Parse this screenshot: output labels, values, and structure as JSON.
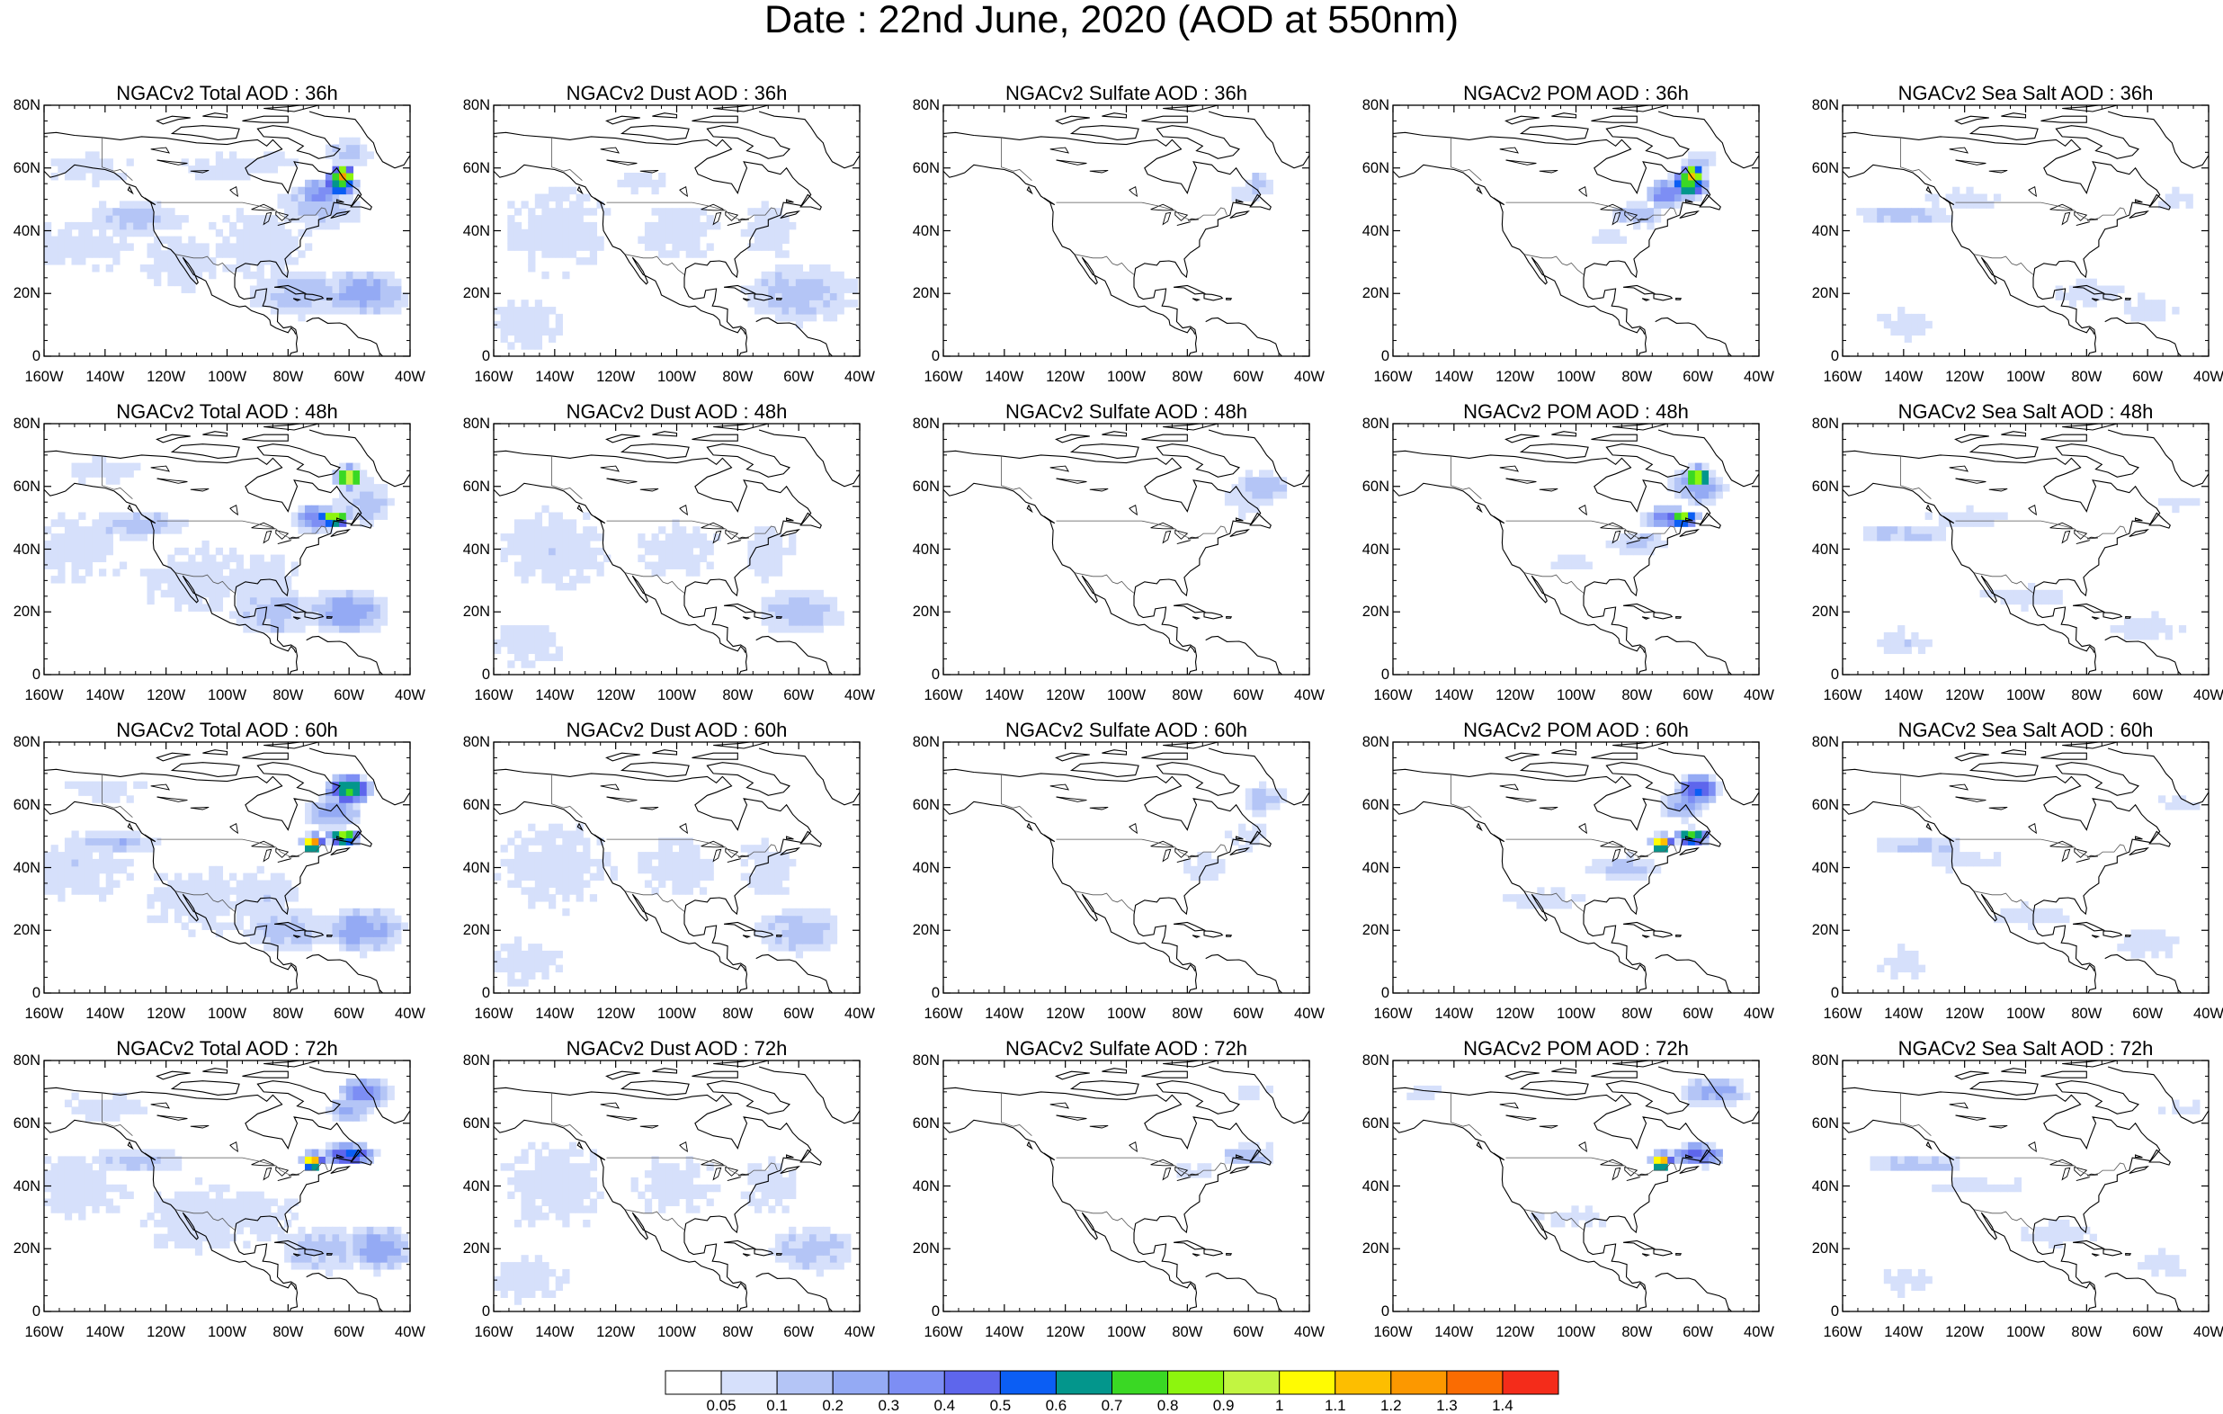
{
  "title": "Date : 22nd June, 2020 (AOD at 550nm)",
  "panels": [
    [
      "NGACv2 Total AOD : 36h",
      "NGACv2 Dust AOD : 36h",
      "NGACv2 Sulfate AOD : 36h",
      "NGACv2 POM AOD : 36h",
      "NGACv2 Sea Salt AOD : 36h"
    ],
    [
      "NGACv2 Total AOD : 48h",
      "NGACv2 Dust AOD : 48h",
      "NGACv2 Sulfate AOD : 48h",
      "NGACv2 POM AOD : 48h",
      "NGACv2 Sea Salt AOD : 48h"
    ],
    [
      "NGACv2 Total AOD : 60h",
      "NGACv2 Dust AOD : 60h",
      "NGACv2 Sulfate AOD : 60h",
      "NGACv2 POM AOD : 60h",
      "NGACv2 Sea Salt AOD : 60h"
    ],
    [
      "NGACv2 Total AOD : 72h",
      "NGACv2 Dust AOD : 72h",
      "NGACv2 Sulfate AOD : 72h",
      "NGACv2 POM AOD : 72h",
      "NGACv2 Sea Salt  AOD : 72h"
    ]
  ],
  "lat_labels": [
    "80N",
    "60N",
    "40N",
    "20N",
    "0"
  ],
  "lon_labels": [
    "160W",
    "140W",
    "120W",
    "100W",
    "80W",
    "60W",
    "40W"
  ],
  "colorbar": {
    "labels": [
      "0.05",
      "0.1",
      "0.2",
      "0.3",
      "0.4",
      "0.5",
      "0.6",
      "0.7",
      "0.8",
      "0.9",
      "1",
      "1.1",
      "1.2",
      "1.3",
      "1.4"
    ],
    "colors": [
      "#ffffff",
      "#d6e0fb",
      "#b4c5f6",
      "#94aaf4",
      "#7d8ef4",
      "#5e66ec",
      "#0b5ef4",
      "#03968c",
      "#3ad824",
      "#8df50e",
      "#c2f541",
      "#fffb02",
      "#fdbe00",
      "#fc9800",
      "#fa6c02",
      "#f42c1a"
    ]
  },
  "fields": [
    [
      {
        "blobs": [
          [
            -150,
            35,
            22,
            9,
            1
          ],
          [
            -130,
            44,
            18,
            6,
            2
          ],
          [
            -115,
            30,
            15,
            10,
            1
          ],
          [
            -90,
            35,
            20,
            12,
            1
          ],
          [
            -70,
            48,
            15,
            8,
            2
          ],
          [
            -62,
            58,
            4,
            3,
            13
          ],
          [
            -63,
            55,
            6,
            5,
            8
          ],
          [
            -70,
            52,
            8,
            5,
            4
          ],
          [
            -55,
            20,
            15,
            8,
            3
          ],
          [
            -75,
            20,
            20,
            8,
            2
          ],
          [
            -145,
            60,
            15,
            5,
            1
          ],
          [
            -100,
            60,
            15,
            5,
            1
          ],
          [
            -85,
            62,
            10,
            4,
            1
          ],
          [
            -60,
            65,
            8,
            5,
            2
          ]
        ]
      },
      {
        "blobs": [
          [
            -140,
            40,
            20,
            15,
            1
          ],
          [
            -100,
            40,
            15,
            10,
            1
          ],
          [
            -60,
            20,
            20,
            10,
            2
          ],
          [
            -70,
            40,
            10,
            10,
            1
          ],
          [
            -150,
            10,
            15,
            8,
            1
          ],
          [
            -110,
            55,
            10,
            4,
            1
          ]
        ]
      },
      {
        "blobs": [
          [
            -57,
            55,
            5,
            4,
            2
          ],
          [
            -60,
            52,
            6,
            4,
            1
          ]
        ]
      },
      {
        "blobs": [
          [
            -62,
            58,
            4,
            3,
            13
          ],
          [
            -63,
            55,
            7,
            5,
            8
          ],
          [
            -70,
            52,
            8,
            5,
            4
          ],
          [
            -80,
            45,
            10,
            4,
            2
          ],
          [
            -90,
            38,
            8,
            3,
            1
          ],
          [
            -60,
            62,
            6,
            4,
            2
          ]
        ]
      },
      {
        "blobs": [
          [
            -140,
            45,
            18,
            3,
            2
          ],
          [
            -120,
            50,
            15,
            3,
            1
          ],
          [
            -80,
            20,
            15,
            4,
            1
          ],
          [
            -50,
            50,
            8,
            3,
            1
          ],
          [
            -60,
            15,
            10,
            5,
            1
          ],
          [
            -140,
            10,
            10,
            5,
            1
          ]
        ]
      }
    ],
    [
      {
        "blobs": [
          [
            -150,
            40,
            20,
            12,
            1
          ],
          [
            -130,
            48,
            18,
            5,
            2
          ],
          [
            -110,
            30,
            20,
            12,
            1
          ],
          [
            -90,
            30,
            15,
            10,
            1
          ],
          [
            -60,
            63,
            5,
            4,
            11
          ],
          [
            -65,
            50,
            6,
            3,
            10
          ],
          [
            -70,
            50,
            10,
            5,
            4
          ],
          [
            -60,
            20,
            15,
            8,
            3
          ],
          [
            -85,
            20,
            15,
            8,
            2
          ],
          [
            -55,
            55,
            10,
            8,
            2
          ],
          [
            -140,
            65,
            15,
            4,
            1
          ]
        ]
      },
      {
        "blobs": [
          [
            -140,
            40,
            20,
            15,
            1
          ],
          [
            -100,
            40,
            15,
            10,
            1
          ],
          [
            -60,
            20,
            15,
            8,
            2
          ],
          [
            -70,
            40,
            10,
            10,
            1
          ],
          [
            -150,
            10,
            15,
            8,
            1
          ]
        ]
      },
      {
        "blobs": [
          [
            -55,
            60,
            10,
            5,
            2
          ],
          [
            -60,
            55,
            8,
            5,
            1
          ]
        ]
      },
      {
        "blobs": [
          [
            -60,
            63,
            5,
            4,
            10
          ],
          [
            -65,
            50,
            6,
            3,
            9
          ],
          [
            -70,
            50,
            9,
            4,
            4
          ],
          [
            -60,
            60,
            10,
            6,
            3
          ],
          [
            -80,
            42,
            10,
            4,
            2
          ],
          [
            -100,
            35,
            10,
            3,
            1
          ]
        ]
      },
      {
        "blobs": [
          [
            -140,
            45,
            18,
            3,
            2
          ],
          [
            -120,
            50,
            15,
            3,
            1
          ],
          [
            -100,
            25,
            15,
            4,
            1
          ],
          [
            -60,
            15,
            12,
            5,
            1
          ],
          [
            -50,
            55,
            8,
            3,
            1
          ],
          [
            -140,
            10,
            10,
            5,
            1
          ]
        ]
      }
    ],
    [
      {
        "blobs": [
          [
            -150,
            40,
            20,
            12,
            1
          ],
          [
            -135,
            48,
            15,
            4,
            2
          ],
          [
            -110,
            30,
            20,
            12,
            1
          ],
          [
            -90,
            30,
            15,
            10,
            1
          ],
          [
            -72,
            48,
            4,
            3,
            13
          ],
          [
            -62,
            50,
            6,
            3,
            9
          ],
          [
            -60,
            65,
            8,
            5,
            8
          ],
          [
            -65,
            58,
            10,
            6,
            3
          ],
          [
            -55,
            20,
            15,
            8,
            3
          ],
          [
            -80,
            20,
            15,
            8,
            2
          ],
          [
            -140,
            65,
            15,
            4,
            1
          ]
        ]
      },
      {
        "blobs": [
          [
            -140,
            40,
            20,
            15,
            1
          ],
          [
            -100,
            40,
            15,
            10,
            1
          ],
          [
            -60,
            20,
            15,
            8,
            2
          ],
          [
            -70,
            40,
            10,
            10,
            1
          ],
          [
            -150,
            10,
            15,
            8,
            1
          ]
        ]
      },
      {
        "blobs": [
          [
            -55,
            62,
            8,
            5,
            2
          ],
          [
            -60,
            50,
            10,
            4,
            1
          ],
          [
            -75,
            40,
            8,
            5,
            1
          ]
        ]
      },
      {
        "blobs": [
          [
            -72,
            48,
            4,
            3,
            13
          ],
          [
            -62,
            50,
            6,
            3,
            9
          ],
          [
            -60,
            65,
            8,
            5,
            6
          ],
          [
            -65,
            60,
            8,
            5,
            3
          ],
          [
            -85,
            40,
            12,
            4,
            2
          ],
          [
            -110,
            30,
            15,
            3,
            1
          ]
        ]
      },
      {
        "blobs": [
          [
            -135,
            47,
            18,
            3,
            2
          ],
          [
            -120,
            42,
            15,
            3,
            1
          ],
          [
            -100,
            25,
            15,
            4,
            1
          ],
          [
            -60,
            15,
            12,
            5,
            1
          ],
          [
            -50,
            60,
            8,
            3,
            1
          ],
          [
            -140,
            10,
            10,
            5,
            1
          ]
        ]
      }
    ],
    [
      {
        "blobs": [
          [
            -150,
            40,
            20,
            12,
            1
          ],
          [
            -130,
            48,
            18,
            4,
            2
          ],
          [
            -110,
            30,
            20,
            12,
            1
          ],
          [
            -90,
            30,
            15,
            10,
            1
          ],
          [
            -72,
            48,
            4,
            3,
            13
          ],
          [
            -60,
            50,
            10,
            4,
            6
          ],
          [
            -55,
            70,
            10,
            5,
            4
          ],
          [
            -60,
            65,
            8,
            5,
            3
          ],
          [
            -50,
            20,
            12,
            8,
            3
          ],
          [
            -70,
            20,
            15,
            8,
            2
          ],
          [
            -140,
            65,
            15,
            5,
            1
          ]
        ]
      },
      {
        "blobs": [
          [
            -140,
            40,
            20,
            15,
            1
          ],
          [
            -100,
            40,
            15,
            10,
            1
          ],
          [
            -55,
            20,
            15,
            8,
            2
          ],
          [
            -70,
            40,
            10,
            10,
            1
          ],
          [
            -150,
            10,
            15,
            8,
            1
          ]
        ]
      },
      {
        "blobs": [
          [
            -60,
            50,
            10,
            4,
            2
          ],
          [
            -60,
            70,
            8,
            3,
            1
          ],
          [
            -75,
            45,
            8,
            4,
            1
          ]
        ]
      },
      {
        "blobs": [
          [
            -72,
            48,
            4,
            3,
            13
          ],
          [
            -60,
            50,
            10,
            4,
            5
          ],
          [
            -55,
            70,
            12,
            5,
            3
          ],
          [
            -100,
            30,
            15,
            3,
            1
          ],
          [
            -150,
            70,
            10,
            3,
            1
          ]
        ]
      },
      {
        "blobs": [
          [
            -135,
            47,
            18,
            3,
            2
          ],
          [
            -115,
            40,
            15,
            3,
            1
          ],
          [
            -90,
            25,
            15,
            4,
            1
          ],
          [
            -55,
            15,
            10,
            5,
            1
          ],
          [
            -50,
            65,
            8,
            3,
            1
          ],
          [
            -140,
            10,
            10,
            5,
            1
          ]
        ]
      }
    ]
  ]
}
